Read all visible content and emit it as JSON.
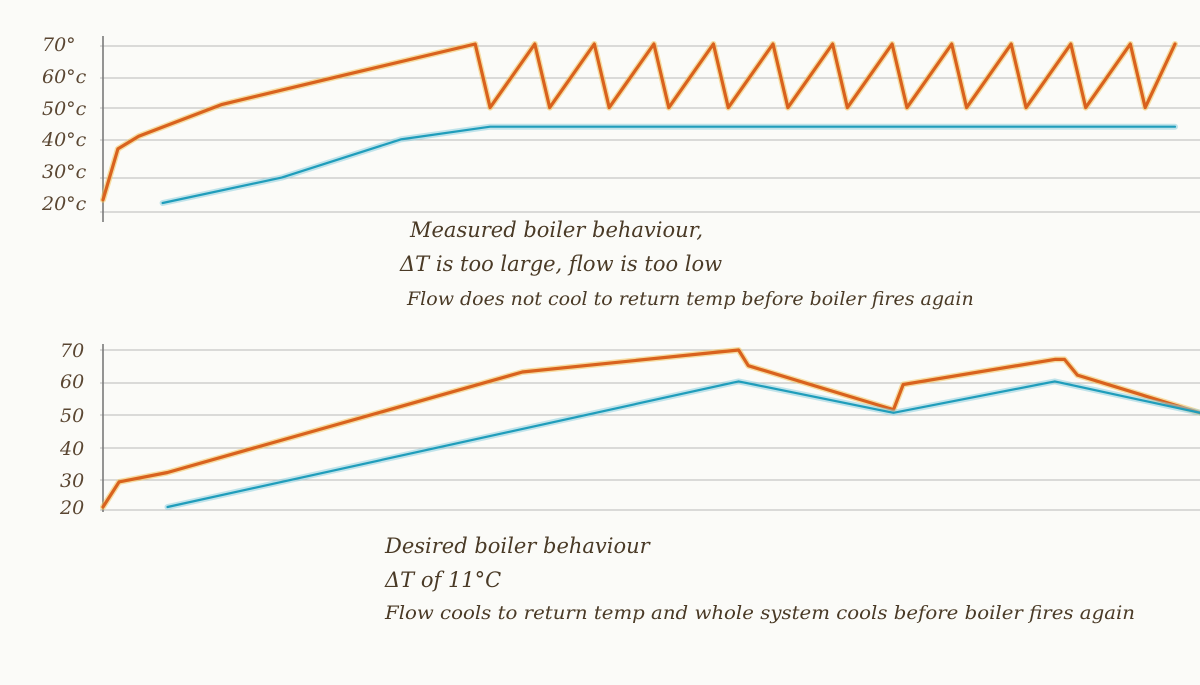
{
  "chart_data": [
    {
      "type": "line",
      "title": "",
      "ylim": [
        20,
        70
      ],
      "y_ticks": [
        "70°",
        "60°c",
        "50°c",
        "40°c",
        "30°c",
        "20°c"
      ],
      "grid": true,
      "annotations": [
        "Measured boiler behaviour,",
        "ΔT is too large, flow is too low",
        "Flow does not cool to return temp before boiler fires again"
      ],
      "series": [
        {
          "color": "#d9621e",
          "points": [
            [
              0,
              21
            ],
            [
              5,
              37
            ],
            [
              12,
              41
            ],
            [
              40,
              51
            ],
            [
              80,
              60
            ],
            [
              125,
              70
            ],
            [
              130,
              50
            ],
            [
              145,
              70
            ],
            [
              150,
              50
            ],
            [
              165,
              70
            ],
            [
              170,
              50
            ],
            [
              185,
              70
            ],
            [
              190,
              50
            ],
            [
              205,
              70
            ],
            [
              210,
              50
            ],
            [
              225,
              70
            ],
            [
              230,
              50
            ],
            [
              245,
              70
            ],
            [
              250,
              50
            ],
            [
              265,
              70
            ],
            [
              270,
              50
            ],
            [
              285,
              70
            ],
            [
              290,
              50
            ],
            [
              305,
              70
            ],
            [
              310,
              50
            ],
            [
              325,
              70
            ],
            [
              330,
              50
            ],
            [
              345,
              70
            ],
            [
              350,
              50
            ],
            [
              360,
              70
            ]
          ]
        },
        {
          "color": "#1f9dbb",
          "points": [
            [
              20,
              20
            ],
            [
              60,
              28
            ],
            [
              100,
              40
            ],
            [
              130,
              44
            ],
            [
              200,
              44
            ],
            [
              250,
              44
            ],
            [
              300,
              44
            ],
            [
              360,
              44
            ]
          ]
        }
      ]
    },
    {
      "type": "line",
      "title": "",
      "ylim": [
        20,
        70
      ],
      "y_ticks": [
        "70",
        "60",
        "50",
        "40",
        "30",
        "20"
      ],
      "grid": true,
      "annotations": [
        "Desired boiler behaviour",
        "ΔT of 11°C",
        "Flow cools to return temp and whole system cools before boiler fires again"
      ],
      "series": [
        {
          "color": "#d9621e",
          "points": [
            [
              0,
              20
            ],
            [
              5,
              28
            ],
            [
              20,
              31
            ],
            [
              130,
              63
            ],
            [
              197,
              70
            ],
            [
              200,
              65
            ],
            [
              245,
              51
            ],
            [
              248,
              59
            ],
            [
              295,
              67
            ],
            [
              298,
              67
            ],
            [
              302,
              62
            ],
            [
              340,
              50
            ]
          ]
        },
        {
          "color": "#1f9dbb",
          "points": [
            [
              20,
              20
            ],
            [
              197,
              60
            ],
            [
              245,
              50
            ],
            [
              295,
              60
            ],
            [
              340,
              50
            ]
          ]
        }
      ]
    }
  ]
}
